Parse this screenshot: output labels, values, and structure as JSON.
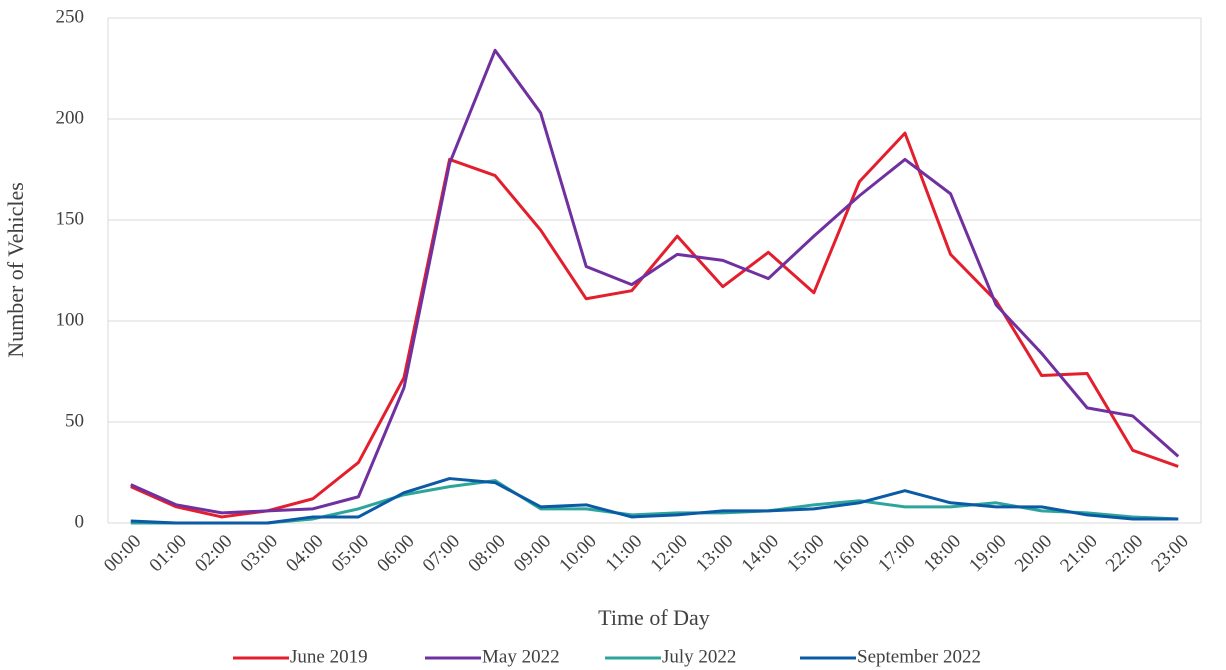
{
  "chart_data": {
    "type": "line",
    "x_label": "Time of Day",
    "y_label": "Number of Vehicles",
    "categories": [
      "00:00",
      "01:00",
      "02:00",
      "03:00",
      "04:00",
      "05:00",
      "06:00",
      "07:00",
      "08:00",
      "09:00",
      "10:00",
      "11:00",
      "12:00",
      "13:00",
      "14:00",
      "15:00",
      "16:00",
      "17:00",
      "18:00",
      "19:00",
      "20:00",
      "21:00",
      "22:00",
      "23:00"
    ],
    "series": [
      {
        "name": "June 2019",
        "color": "#e31e2d",
        "values": [
          18,
          8,
          3,
          6,
          12,
          30,
          72,
          180,
          172,
          145,
          111,
          115,
          142,
          117,
          134,
          114,
          169,
          193,
          133,
          110,
          73,
          74,
          36,
          28
        ]
      },
      {
        "name": "May 2022",
        "color": "#7030a0",
        "values": [
          19,
          9,
          5,
          6,
          7,
          13,
          67,
          178,
          234,
          203,
          127,
          118,
          133,
          130,
          121,
          142,
          162,
          180,
          163,
          108,
          84,
          57,
          53,
          33
        ]
      },
      {
        "name": "July 2022",
        "color": "#2ea59a",
        "values": [
          0,
          0,
          0,
          0,
          2,
          7,
          14,
          18,
          21,
          7,
          7,
          4,
          5,
          5,
          6,
          9,
          11,
          8,
          8,
          10,
          6,
          5,
          3,
          2
        ]
      },
      {
        "name": "September 2022",
        "color": "#0b5aa6",
        "values": [
          1,
          0,
          0,
          0,
          3,
          3,
          15,
          22,
          20,
          8,
          9,
          3,
          4,
          6,
          6,
          7,
          10,
          16,
          10,
          8,
          8,
          4,
          2,
          2
        ]
      }
    ],
    "ylim": [
      0,
      250
    ],
    "yticks": [
      0,
      50,
      100,
      150,
      200,
      250
    ],
    "grid": true,
    "legend": "bottom"
  }
}
